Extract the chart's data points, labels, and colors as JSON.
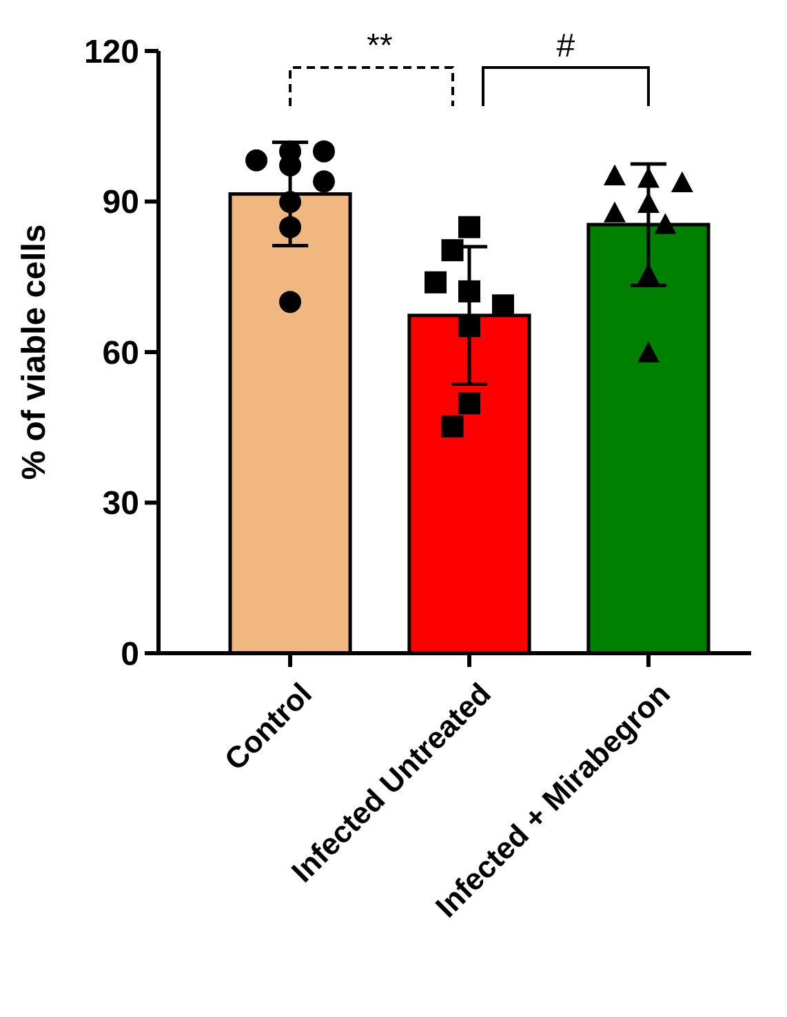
{
  "chart_data": {
    "type": "bar",
    "ylabel": "% of viable cells",
    "categories": [
      "Control",
      "Infected Untreated",
      "Infected + Mirabegron"
    ],
    "values": [
      91.5,
      67.3,
      85.4
    ],
    "colors": [
      "#f0b880",
      "#ff0000",
      "#008000"
    ],
    "errors": [
      10.3,
      13.7,
      12.1
    ],
    "series": [
      {
        "type": "scatter",
        "color": "#000000",
        "marker": "circle",
        "x": [
          "Control",
          "Control",
          "Control",
          "Control",
          "Control",
          "Control",
          "Control",
          "Control"
        ],
        "values": [
          97.2,
          98.2,
          100,
          100,
          94,
          89.9,
          84.9,
          70
        ]
      },
      {
        "type": "scatter",
        "color": "#000000",
        "marker": "square",
        "x": [
          "Infected Untreated",
          "Infected Untreated",
          "Infected Untreated",
          "Infected Untreated",
          "Infected Untreated",
          "Infected Untreated",
          "Infected Untreated",
          "Infected Untreated"
        ],
        "values": [
          84.9,
          80.3,
          72.1,
          73.9,
          69.3,
          65.2,
          49.8,
          45.2
        ]
      },
      {
        "type": "scatter",
        "color": "#000000",
        "marker": "triangle",
        "x": [
          "Infected + Mirabegron",
          "Infected + Mirabegron",
          "Infected + Mirabegron",
          "Infected + Mirabegron",
          "Infected + Mirabegron",
          "Infected + Mirabegron",
          "Infected + Mirabegron",
          "Infected + Mirabegron"
        ],
        "values": [
          94.5,
          95,
          93.6,
          89.5,
          87.6,
          85.3,
          75.3,
          59.7
        ]
      }
    ],
    "ylim": [
      0,
      120
    ],
    "yticks": [
      0,
      30,
      60,
      90,
      120
    ],
    "grid": false,
    "annotations": [
      "**",
      "#"
    ]
  }
}
